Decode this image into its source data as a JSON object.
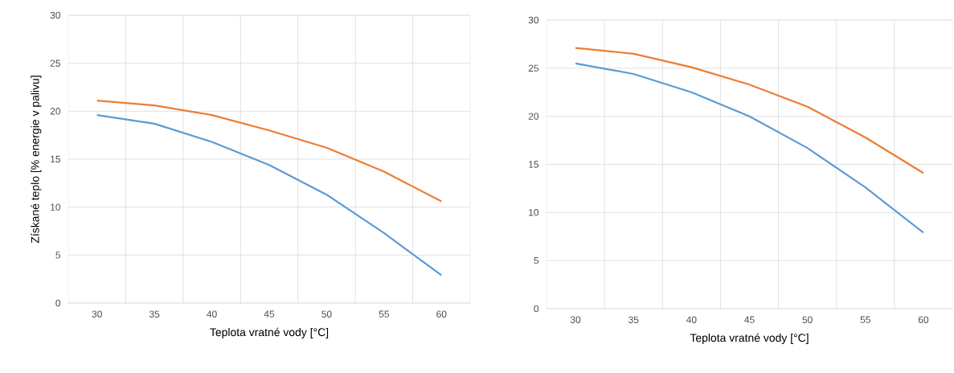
{
  "chart_data": [
    {
      "type": "line",
      "ylabel": "Získané teplo [% energie v palivu]",
      "xlabel": "Teplota vratné vody [°C]",
      "categories": [
        "30",
        "35",
        "40",
        "45",
        "50",
        "55",
        "60"
      ],
      "ylim": [
        0,
        30
      ],
      "yticks": [
        0,
        5,
        10,
        15,
        20,
        25,
        30
      ],
      "grid": true,
      "series": [
        {
          "color": "#5b9bd5",
          "values": [
            19.6,
            18.7,
            16.8,
            14.4,
            11.3,
            7.3,
            2.9
          ]
        },
        {
          "color": "#ed7d31",
          "values": [
            21.1,
            20.6,
            19.6,
            18.0,
            16.2,
            13.7,
            10.6
          ]
        }
      ]
    },
    {
      "type": "line",
      "xlabel": "Teplota vratné vody [°C]",
      "categories": [
        "30",
        "35",
        "40",
        "45",
        "50",
        "55",
        "60"
      ],
      "ylim": [
        0,
        30
      ],
      "yticks": [
        0,
        5,
        10,
        15,
        20,
        25,
        30
      ],
      "grid": true,
      "series": [
        {
          "color": "#5b9bd5",
          "values": [
            25.5,
            24.4,
            22.5,
            20.0,
            16.7,
            12.6,
            7.9
          ]
        },
        {
          "color": "#ed7d31",
          "values": [
            27.1,
            26.5,
            25.1,
            23.3,
            21.0,
            17.8,
            14.1
          ]
        }
      ]
    }
  ]
}
